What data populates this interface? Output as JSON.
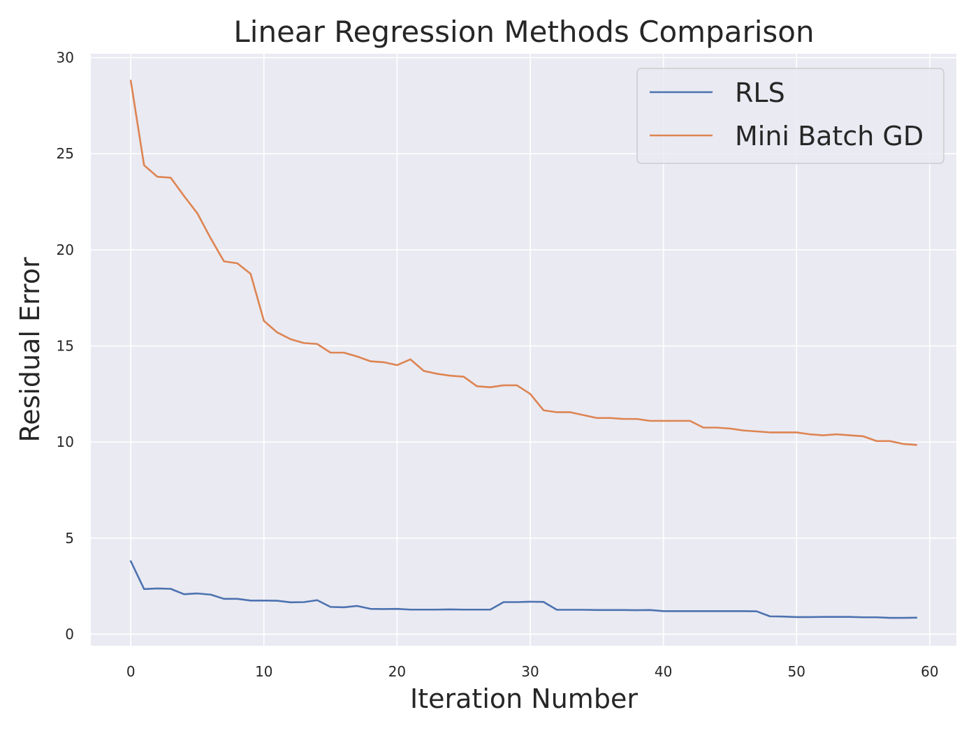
{
  "chart_data": {
    "type": "line",
    "title": "Linear Regression Methods Comparison",
    "xlabel": "Iteration Number",
    "ylabel": "Residual Error",
    "xlim": [
      -3,
      62
    ],
    "ylim": [
      -0.6,
      30.2
    ],
    "xticks": [
      0,
      10,
      20,
      30,
      40,
      50,
      60
    ],
    "yticks": [
      0,
      5,
      10,
      15,
      20,
      25,
      30
    ],
    "grid": true,
    "legend_position": "top-right",
    "x": [
      0,
      1,
      2,
      3,
      4,
      5,
      6,
      7,
      8,
      9,
      10,
      11,
      12,
      13,
      14,
      15,
      16,
      17,
      18,
      19,
      20,
      21,
      22,
      23,
      24,
      25,
      26,
      27,
      28,
      29,
      30,
      31,
      32,
      33,
      34,
      35,
      36,
      37,
      38,
      39,
      40,
      41,
      42,
      43,
      44,
      45,
      46,
      47,
      48,
      49,
      50,
      51,
      52,
      53,
      54,
      55,
      56,
      57,
      58,
      59
    ],
    "series": [
      {
        "name": "RLS",
        "color": "#4c72b0",
        "values": [
          3.8,
          2.35,
          2.38,
          2.36,
          2.08,
          2.12,
          2.06,
          1.84,
          1.84,
          1.75,
          1.75,
          1.74,
          1.66,
          1.67,
          1.77,
          1.42,
          1.4,
          1.47,
          1.32,
          1.31,
          1.32,
          1.28,
          1.28,
          1.28,
          1.29,
          1.28,
          1.28,
          1.28,
          1.67,
          1.67,
          1.69,
          1.68,
          1.27,
          1.27,
          1.27,
          1.26,
          1.26,
          1.26,
          1.25,
          1.26,
          1.2,
          1.2,
          1.2,
          1.2,
          1.2,
          1.2,
          1.2,
          1.19,
          0.93,
          0.92,
          0.89,
          0.89,
          0.9,
          0.9,
          0.9,
          0.88,
          0.88,
          0.85,
          0.85,
          0.86
        ]
      },
      {
        "name": "Mini Batch GD",
        "color": "#dd8452",
        "values": [
          28.8,
          24.4,
          23.8,
          23.75,
          22.8,
          21.9,
          20.6,
          19.4,
          19.3,
          18.75,
          16.3,
          15.7,
          15.35,
          15.15,
          15.1,
          14.65,
          14.65,
          14.45,
          14.2,
          14.15,
          14.0,
          14.3,
          13.7,
          13.55,
          13.45,
          13.4,
          12.9,
          12.85,
          12.95,
          12.95,
          12.5,
          11.65,
          11.55,
          11.55,
          11.4,
          11.25,
          11.25,
          11.2,
          11.2,
          11.1,
          11.1,
          11.1,
          11.1,
          10.75,
          10.75,
          10.7,
          10.6,
          10.55,
          10.5,
          10.5,
          10.5,
          10.4,
          10.35,
          10.4,
          10.35,
          10.3,
          10.05,
          10.05,
          9.9,
          9.85
        ]
      }
    ]
  }
}
